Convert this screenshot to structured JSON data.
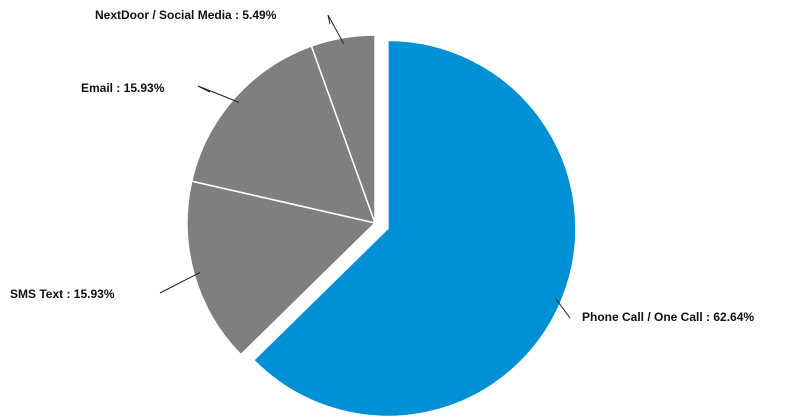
{
  "chart_data": {
    "type": "pie",
    "title": "",
    "start_angle_deg": 0,
    "direction": "clockwise",
    "exploded_slice": "Phone Call / One Call",
    "slices": [
      {
        "name": "Phone Call / One Call",
        "value": 62.64,
        "label": "Phone Call / One Call  : 62.64%",
        "color": "#0090D5"
      },
      {
        "name": "SMS Text",
        "value": 15.93,
        "label": "SMS Text  : 15.93%",
        "color": "#7F7F7F"
      },
      {
        "name": "Email",
        "value": 15.93,
        "label": "Email  : 15.93%",
        "color": "#7F7F7F"
      },
      {
        "name": "NextDoor / Social Media",
        "value": 5.49,
        "label": "NextDoor / Social Media  : 5.49%",
        "color": "#7F7F7F"
      }
    ]
  }
}
